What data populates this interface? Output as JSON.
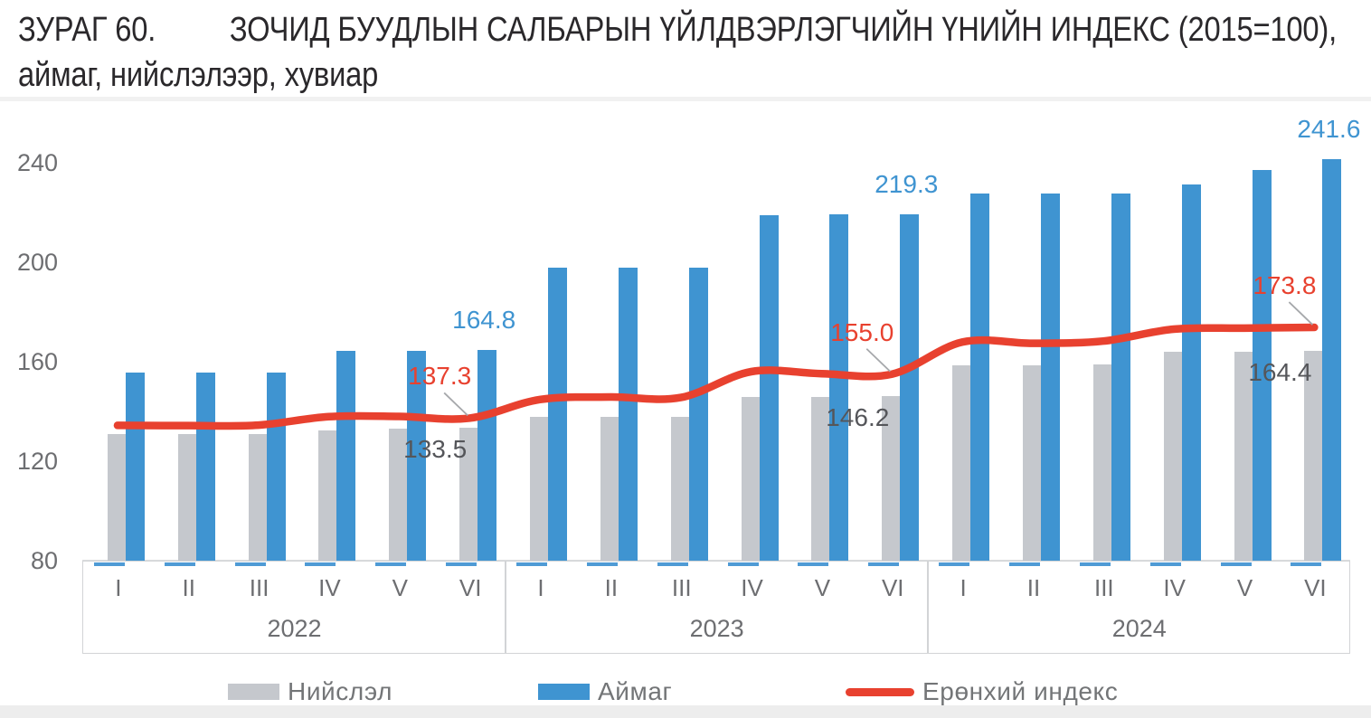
{
  "page": {
    "title_tag": "ЗУРАГ 60.",
    "title_main": "ЗОЧИД БУУДЛЫН САЛБАРЫН ҮЙЛДВЭРЛЭГЧИЙН ҮНИЙН ИНДЕКС (2015=100),",
    "title_line2": "аймаг, нийслэлээр, хувиар"
  },
  "chart_data": {
    "type": "bar",
    "subtype": "grouped-bars-with-line-overlay",
    "title": "ЗУРАГ 60. ЗОЧИД БУУДЛЫН САЛБАРЫН ҮЙЛДВЭРЛЭГЧИЙН ҮНИЙН ИНДЕКС (2015=100), аймаг, нийслэлээр, хувиар",
    "years": [
      "2022",
      "2023",
      "2024"
    ],
    "months": [
      "I",
      "II",
      "III",
      "IV",
      "V",
      "VI"
    ],
    "ylim": [
      80,
      240
    ],
    "y_ticks": [
      240,
      200,
      160,
      120,
      80
    ],
    "grid": false,
    "legend_position": "bottom",
    "colors": {
      "bar_niislel": "#c5c8cd",
      "bar_aimag": "#3f94d1",
      "line_index": "#e8412f",
      "axis_text": "#6d6e71",
      "dark_label": "#55565a",
      "leader_line": "#a6a8ab"
    },
    "series": [
      {
        "key": "niislel",
        "name": "Нийслэл",
        "type": "bar",
        "color": "#c5c8cd",
        "values": [
          130.8,
          130.8,
          130.9,
          132.5,
          133.0,
          133.5,
          137.8,
          137.8,
          137.9,
          146.0,
          146.0,
          146.2,
          158.7,
          158.7,
          158.9,
          163.9,
          164.1,
          164.4
        ]
      },
      {
        "key": "aimag",
        "name": "Аймаг",
        "type": "bar",
        "color": "#3f94d1",
        "values": [
          155.5,
          155.5,
          155.6,
          164.4,
          164.5,
          164.8,
          197.8,
          197.8,
          197.9,
          219.0,
          219.1,
          219.3,
          227.5,
          227.5,
          227.6,
          231.3,
          237.0,
          241.6
        ]
      },
      {
        "key": "index",
        "name": "Ерөнхий индекс",
        "type": "line",
        "color": "#e8412f",
        "values": [
          134.4,
          134.3,
          134.5,
          137.9,
          138.0,
          137.3,
          144.8,
          145.8,
          145.6,
          156.0,
          155.2,
          155.0,
          167.9,
          167.4,
          168.3,
          173.1,
          173.5,
          173.8
        ]
      }
    ],
    "data_labels": [
      {
        "series": "aimag",
        "year": "2022",
        "month": "VI",
        "value": 164.8
      },
      {
        "series": "aimag",
        "year": "2023",
        "month": "VI",
        "value": 219.3
      },
      {
        "series": "aimag",
        "year": "2024",
        "month": "VI",
        "value": 241.6
      },
      {
        "series": "index",
        "year": "2022",
        "month": "VI",
        "value": 137.3
      },
      {
        "series": "index",
        "year": "2023",
        "month": "VI",
        "value": 155.0
      },
      {
        "series": "index",
        "year": "2024",
        "month": "VI",
        "value": 173.8
      },
      {
        "series": "niislel",
        "year": "2022",
        "month": "VI",
        "value": 133.5
      },
      {
        "series": "niislel",
        "year": "2023",
        "month": "VI",
        "value": 146.2
      },
      {
        "series": "niislel",
        "year": "2024",
        "month": "VI",
        "value": 164.4
      }
    ]
  }
}
